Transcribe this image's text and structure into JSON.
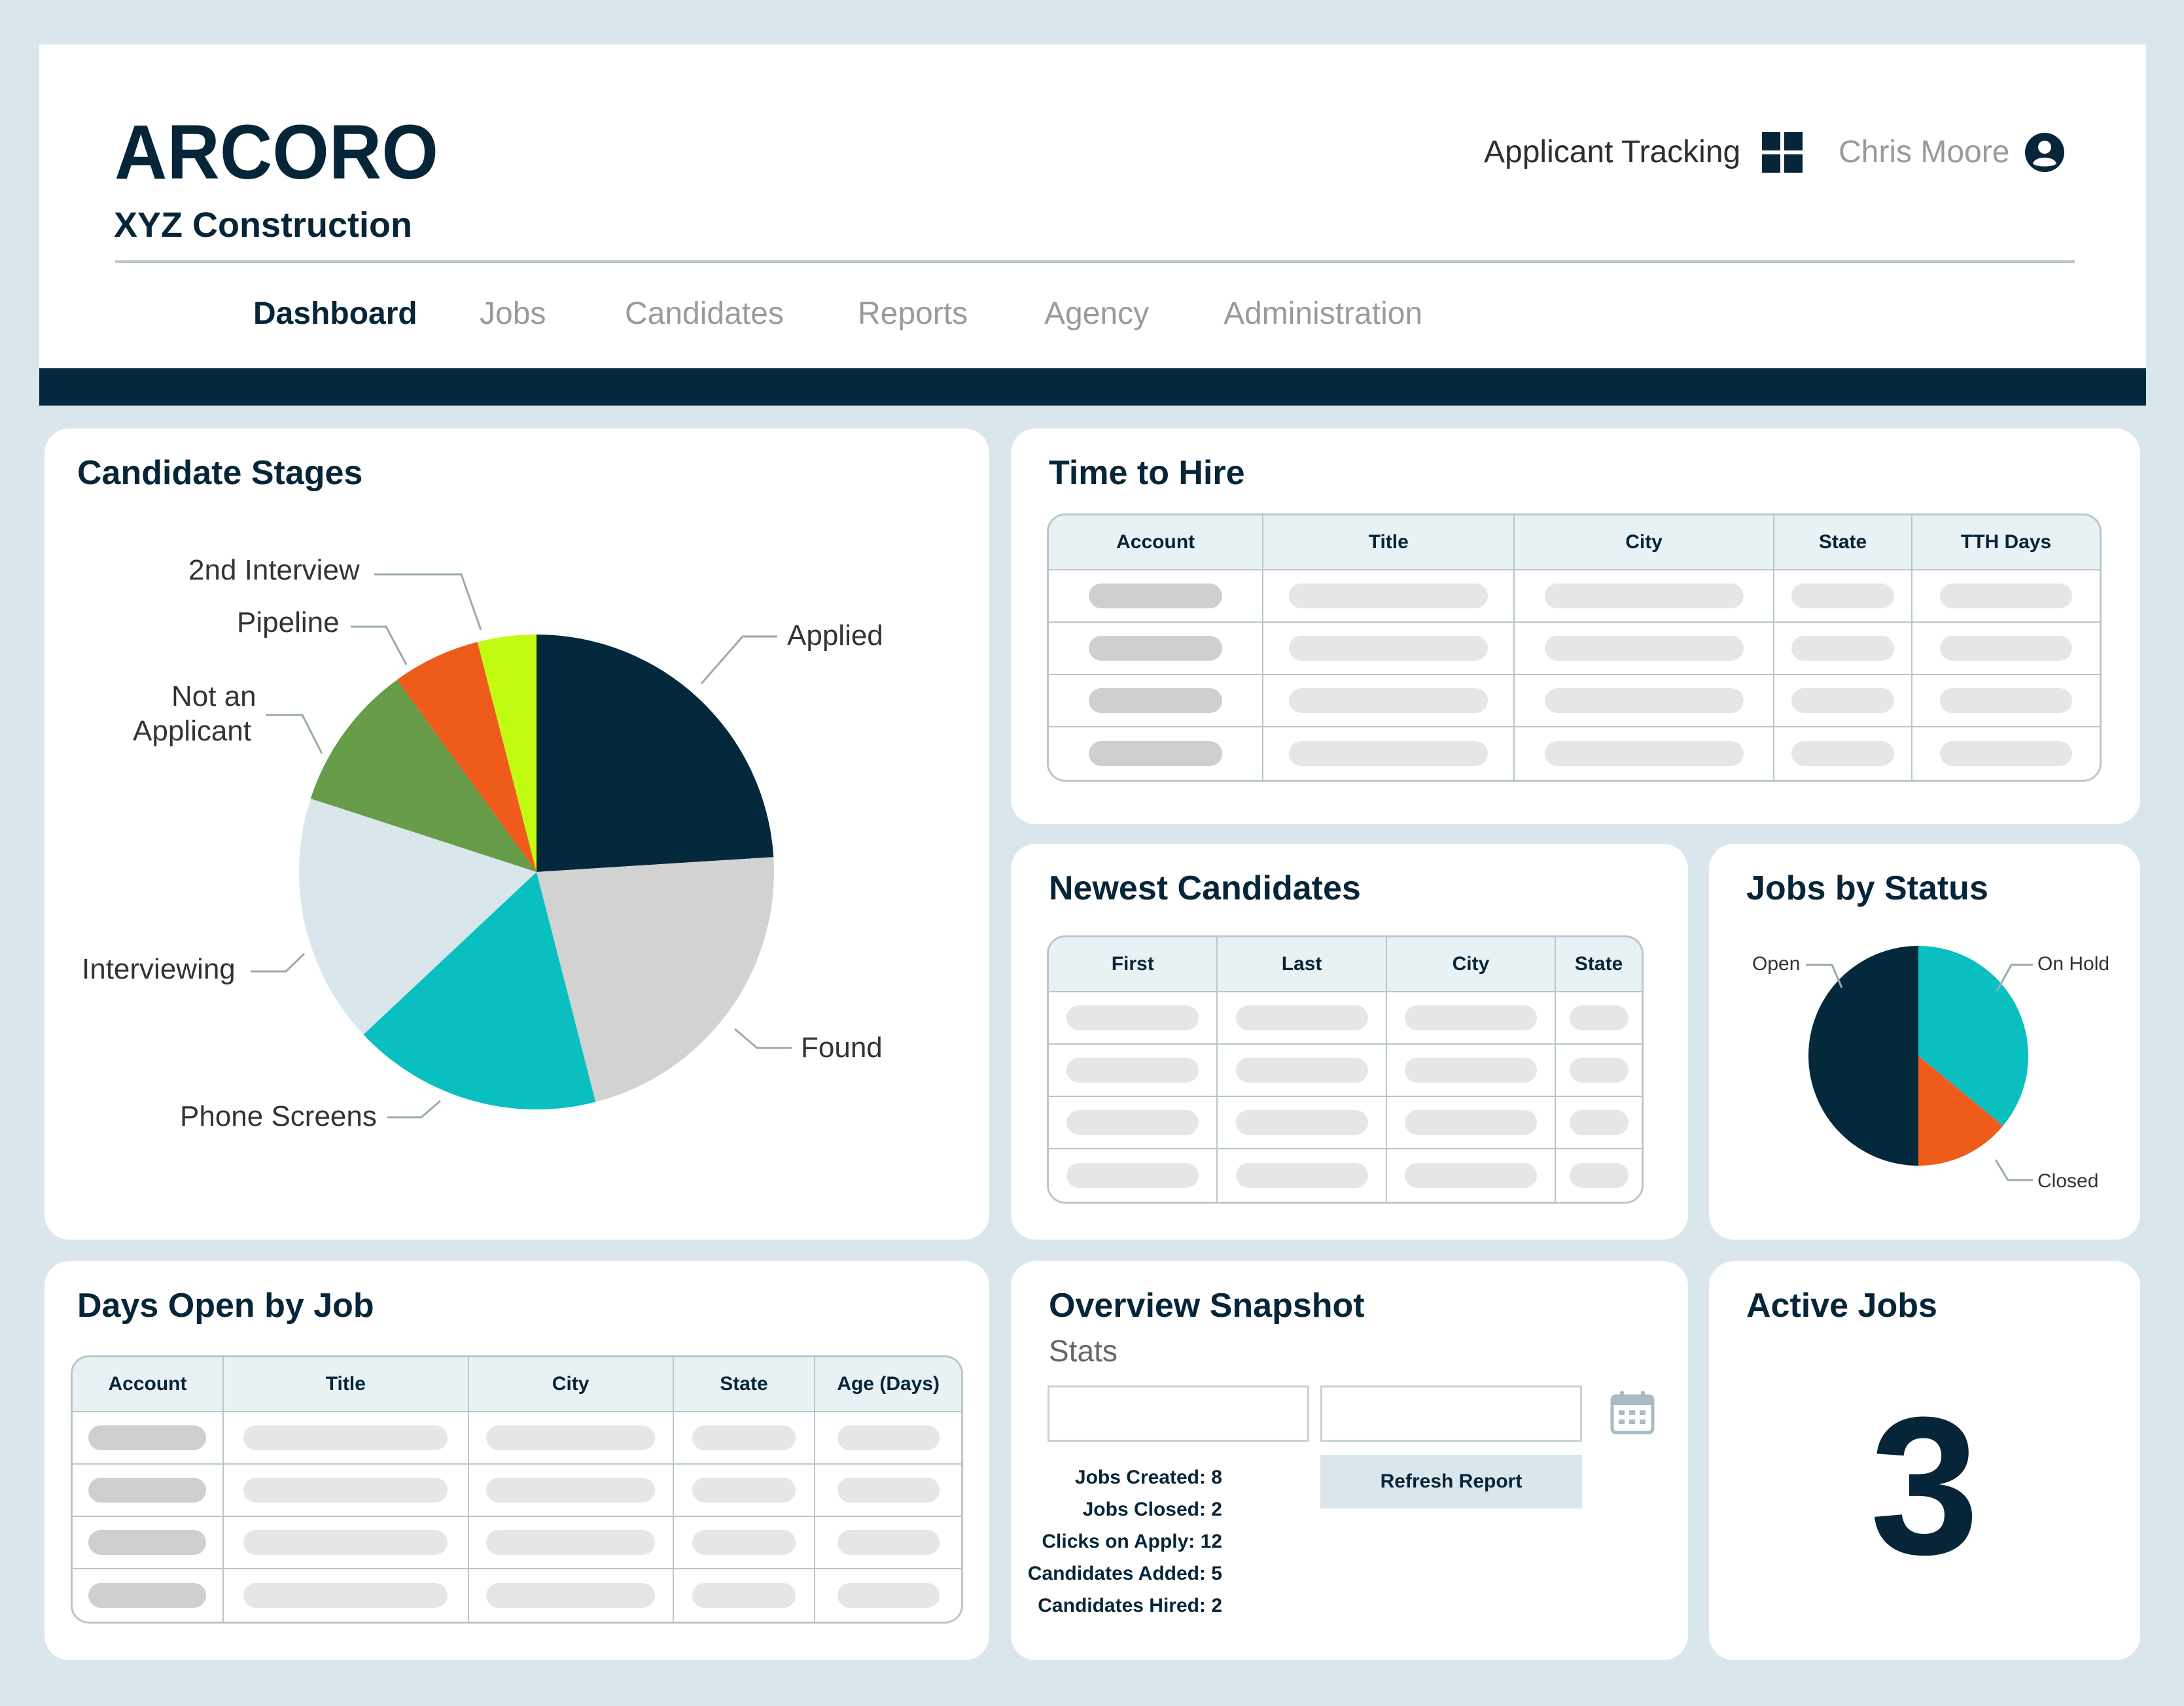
{
  "brand": {
    "logo_text": "ARCORO",
    "company": "XYZ Construction",
    "bar_color": "#04283c"
  },
  "header": {
    "app_label": "Applicant Tracking",
    "app_icon": "grid-icon",
    "user_name": "Chris Moore",
    "user_icon": "user-icon"
  },
  "nav": {
    "items": [
      {
        "label": "Dashboard"
      },
      {
        "label": "Jobs"
      },
      {
        "label": "Candidates"
      },
      {
        "label": "Reports"
      },
      {
        "label": "Agency"
      },
      {
        "label": "Administration"
      }
    ],
    "active": "Dashboard"
  },
  "candidate_stages": {
    "title": "Candidate Stages",
    "labels": {
      "applied": "Applied",
      "found": "Found",
      "phone_screens": "Phone Screens",
      "interviewing": "Interviewing",
      "not_applicant_1": "Not an",
      "not_applicant_2": "Applicant",
      "pipeline": "Pipeline",
      "second_interview": "2nd Interview"
    }
  },
  "time_to_hire": {
    "title": "Time to Hire",
    "columns": [
      "Account",
      "Title",
      "City",
      "State",
      "TTH Days"
    ]
  },
  "newest_candidates": {
    "title": "Newest Candidates",
    "columns": [
      "First",
      "Last",
      "City",
      "State"
    ]
  },
  "jobs_by_status": {
    "title": "Jobs by Status",
    "labels": {
      "open": "Open",
      "on_hold": "On Hold",
      "closed": "Closed"
    }
  },
  "days_open": {
    "title": "Days Open by Job",
    "columns": [
      "Account",
      "Title",
      "City",
      "State",
      "Age (Days)"
    ]
  },
  "overview": {
    "title": "Overview Snapshot",
    "subtitle": "Stats",
    "stats": [
      "Jobs Created: 8",
      "Jobs Closed: 2",
      "Clicks on Apply: 12",
      "Candidates Added: 5",
      "Candidates Hired: 2"
    ],
    "refresh_label": "Refresh Report",
    "calendar_icon": "calendar-icon"
  },
  "active_jobs": {
    "title": "Active Jobs",
    "count": "3"
  },
  "chart_data": [
    {
      "type": "pie",
      "slices": [
        {
          "name": "Applied",
          "value": 24,
          "color": "#04283c"
        },
        {
          "name": "Found",
          "value": 22,
          "color": "#d2d2d2"
        },
        {
          "name": "Phone Screens",
          "value": 17,
          "color": "#0abfc0"
        },
        {
          "name": "Interviewing",
          "value": 17,
          "color": "#d9e7ec"
        },
        {
          "name": "Not an Applicant",
          "value": 10,
          "color": "#679c48"
        },
        {
          "name": "Pipeline",
          "value": 6,
          "color": "#ef5b1b"
        },
        {
          "name": "2nd Interview",
          "value": 4,
          "color": "#c2fb12"
        }
      ]
    },
    {
      "type": "pie",
      "slices": [
        {
          "name": "On Hold",
          "value": 36,
          "color": "#0abfc0"
        },
        {
          "name": "Closed",
          "value": 14,
          "color": "#ef5b1b"
        },
        {
          "name": "Open",
          "value": 50,
          "color": "#04283c"
        }
      ]
    }
  ]
}
